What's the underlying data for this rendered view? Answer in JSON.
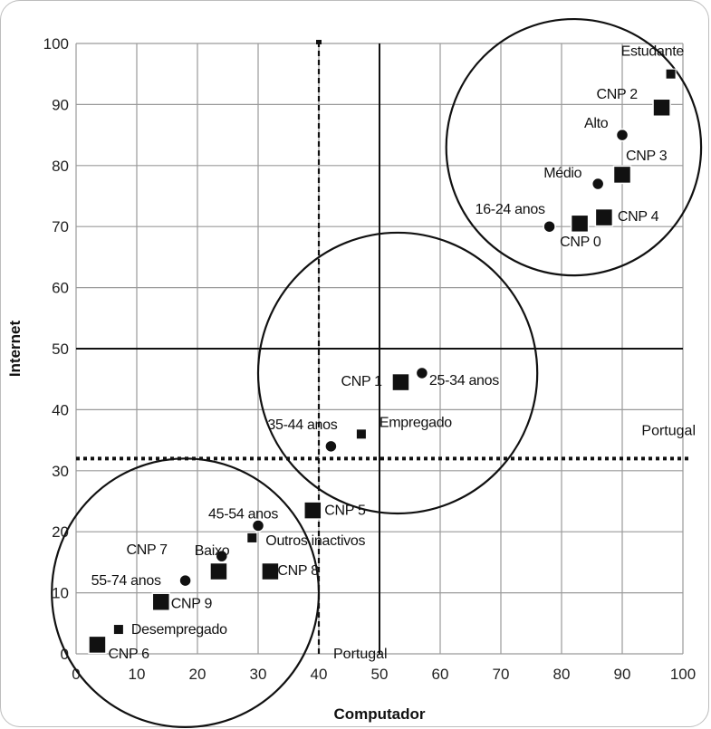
{
  "chart_data": {
    "type": "scatter",
    "xlabel": "Computador",
    "ylabel": "Internet",
    "xlim": [
      0,
      100
    ],
    "ylim": [
      0,
      100
    ],
    "xticks": [
      0,
      10,
      20,
      30,
      40,
      50,
      60,
      70,
      80,
      90,
      100
    ],
    "yticks": [
      0,
      10,
      20,
      30,
      40,
      50,
      60,
      70,
      80,
      90,
      100
    ],
    "grid": true,
    "axis_lines": {
      "x": 50,
      "y": 50
    },
    "reference": {
      "label": "Portugal",
      "x": 40,
      "y": 32,
      "x_label": "Portugal",
      "y_label": "Portugal"
    },
    "clusters": [
      {
        "cx": 82,
        "cy": 83,
        "r": 21
      },
      {
        "cx": 53,
        "cy": 46,
        "r": 23
      },
      {
        "cx": 18,
        "cy": 10,
        "r": 22
      }
    ],
    "points": [
      {
        "label": "Estudante",
        "x": 98,
        "y": 95,
        "marker": "square-small"
      },
      {
        "label": "CNP 2",
        "x": 96.5,
        "y": 89.5,
        "marker": "square"
      },
      {
        "label": "Alto",
        "x": 90,
        "y": 85,
        "marker": "circle"
      },
      {
        "label": "CNP 3",
        "x": 90,
        "y": 78.5,
        "marker": "square"
      },
      {
        "label": "Médio",
        "x": 86,
        "y": 77,
        "marker": "circle"
      },
      {
        "label": "16-24 anos",
        "x": 78,
        "y": 70,
        "marker": "circle"
      },
      {
        "label": "CNP 0",
        "x": 83,
        "y": 70.5,
        "marker": "square"
      },
      {
        "label": "CNP 4",
        "x": 87,
        "y": 71.5,
        "marker": "square"
      },
      {
        "label": "CNP 1",
        "x": 53.5,
        "y": 44.5,
        "marker": "square"
      },
      {
        "label": "25-34 anos",
        "x": 57,
        "y": 46,
        "marker": "circle"
      },
      {
        "label": "35-44 anos",
        "x": 42,
        "y": 34,
        "marker": "circle"
      },
      {
        "label": "Empregado",
        "x": 47,
        "y": 36,
        "marker": "square-small"
      },
      {
        "label": "45-54 anos",
        "x": 30,
        "y": 21,
        "marker": "circle"
      },
      {
        "label": "CNP 5",
        "x": 39,
        "y": 23.5,
        "marker": "square"
      },
      {
        "label": "Baixo",
        "x": 24,
        "y": 16,
        "marker": "circle"
      },
      {
        "label": "Outros inactivos",
        "x": 29,
        "y": 19,
        "marker": "square-small"
      },
      {
        "label": "CNP 7",
        "x": 23.5,
        "y": 13.5,
        "marker": "square"
      },
      {
        "label": "55-74 anos",
        "x": 18,
        "y": 12,
        "marker": "circle"
      },
      {
        "label": "CNP 8",
        "x": 32,
        "y": 13.5,
        "marker": "square"
      },
      {
        "label": "CNP 9",
        "x": 14,
        "y": 8.5,
        "marker": "square"
      },
      {
        "label": "Desempregado",
        "x": 7,
        "y": 4,
        "marker": "square-small"
      },
      {
        "label": "CNP 6",
        "x": 3.5,
        "y": 1.5,
        "marker": "square"
      }
    ]
  }
}
